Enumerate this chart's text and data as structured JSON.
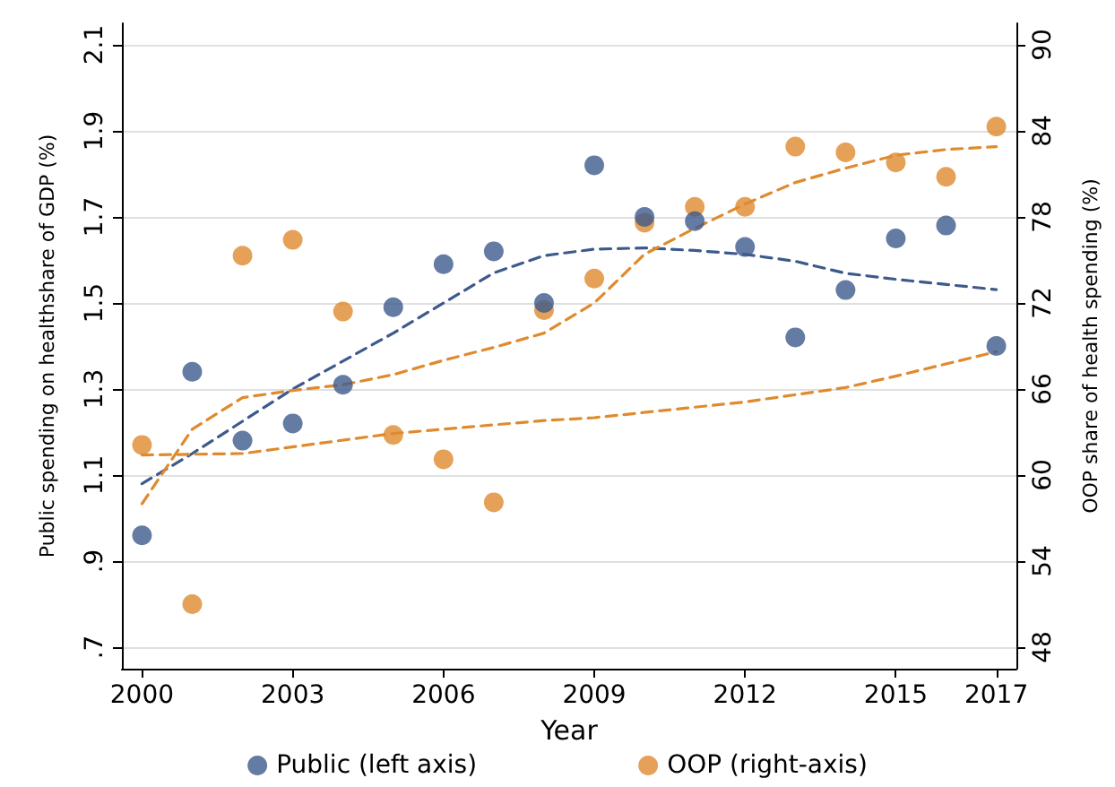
{
  "chart_data": {
    "type": "scatter",
    "xlabel": "Year",
    "ylabel": "Public spending on healthshare of GDP (%)",
    "y2label": "OOP share of health spending (%)",
    "xlim": [
      1999.6,
      2017.4
    ],
    "xticks": [
      2000,
      2003,
      2006,
      2009,
      2012,
      2015,
      2017
    ],
    "ylim": [
      0.65,
      2.15
    ],
    "yticks": [
      {
        "value": 0.7,
        "label": ".7"
      },
      {
        "value": 0.9,
        "label": ".9"
      },
      1.1,
      1.3,
      1.5,
      1.7,
      1.9,
      2.1
    ],
    "y2lim": [
      46.5,
      91.5
    ],
    "y2ticks": [
      48,
      54,
      60,
      66,
      72,
      78,
      84,
      90
    ],
    "grid": "y",
    "legend": "bottom",
    "marker": "circle",
    "series": [
      {
        "name": "Public (left axis)",
        "color": "#3d5a8c",
        "x": [
          2000,
          2001,
          2002,
          2003,
          2004,
          2005,
          2006,
          2007,
          2008,
          2009,
          2010,
          2011,
          2012,
          2013,
          2014,
          2015,
          2016,
          2017
        ],
        "values": [
          0.96,
          1.34,
          1.18,
          1.22,
          1.31,
          1.49,
          1.59,
          1.62,
          1.5,
          1.82,
          1.7,
          1.69,
          1.63,
          1.42,
          1.53,
          1.65,
          1.68,
          1.4
        ]
      },
      {
        "name": "OOP (right-axis)",
        "color": "#e08a2e",
        "axis": "y2",
        "x": [
          2000,
          2001,
          2002,
          2003,
          2004,
          2005,
          2006,
          2007,
          2008,
          2009,
          2010,
          2011,
          2012,
          2013,
          2014,
          2015,
          2016,
          2017
        ],
        "values": [
          62.1,
          51,
          75.3,
          76.4,
          71.4,
          62.8,
          61.1,
          58.1,
          71.5,
          73.7,
          77.6,
          78.7,
          78.7,
          82.9,
          82.5,
          81.8,
          80.8,
          84.3
        ]
      },
      {
        "type": "line",
        "line_style": "dashed",
        "marker": "none",
        "color": "#3d5a8c",
        "x": [
          2000,
          2001,
          2003,
          2005,
          2007,
          2008,
          2009,
          2010,
          2011,
          2012,
          2013,
          2014,
          2015,
          2017
        ],
        "values": [
          1.08,
          1.15,
          1.3,
          1.43,
          1.57,
          1.61,
          1.625,
          1.628,
          1.622,
          1.613,
          1.597,
          1.569,
          1.555,
          1.531
        ]
      },
      {
        "type": "line",
        "line_style": "dashed",
        "marker": "none",
        "color": "#e08a2e",
        "axis": "y2",
        "x": [
          2000,
          2001,
          2002,
          2003,
          2004,
          2005,
          2006,
          2007,
          2008,
          2009,
          2010,
          2011,
          2012,
          2013,
          2014,
          2015,
          2016,
          2017
        ],
        "values": [
          58,
          63.2,
          65.4,
          65.9,
          66.3,
          67,
          68,
          68.9,
          69.9,
          72,
          75.4,
          77.2,
          78.9,
          80.4,
          81.4,
          82.3,
          82.7,
          82.9
        ]
      },
      {
        "type": "line",
        "line_style": "dashed",
        "marker": "none",
        "color": "#e08a2e",
        "axis": "y2",
        "x": [
          2000,
          2002,
          2005,
          2008,
          2009,
          2012,
          2014,
          2015,
          2017
        ],
        "values": [
          61.4,
          61.5,
          62.9,
          63.8,
          64,
          65.1,
          66.1,
          66.9,
          68.6
        ]
      }
    ]
  }
}
